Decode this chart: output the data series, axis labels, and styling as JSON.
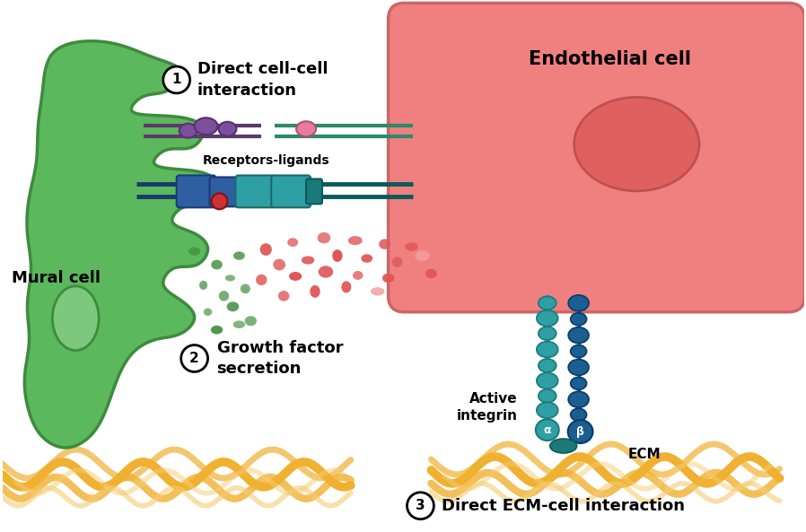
{
  "bg_color": "#ffffff",
  "mural_cell_color": "#5cb85c",
  "mural_cell_dark": "#3d8b3d",
  "mural_nucleus_color": "#7dc87d",
  "endothelial_bg": "#f08080",
  "endothelial_border": "#cc6666",
  "endothelial_nucleus": "#e06060",
  "receptor_blue": "#2E5FA3",
  "receptor_teal": "#2E9FA3",
  "receptor_dark_teal": "#1a7a7a",
  "ligand_purple": "#7B4F9E",
  "ligand_pink": "#E87BA0",
  "signal_red": "#cc3333",
  "dots_red": "#e05555",
  "dots_green": "#3a8a3a",
  "dots_pink_light": "#f0a0a0",
  "integrin_teal": "#2E9FA3",
  "integrin_dark": "#1a5f8f",
  "ecm_color": "#f0b030",
  "ecm_light": "#f5cc70",
  "title1": "Direct cell-cell\ninteraction",
  "title2": "Growth factor\nsecretion",
  "title3": "Direct ECM-cell interaction",
  "label_mural": "Mural cell",
  "label_endo": "Endothelial cell",
  "label_receptors": "Receptors-ligands",
  "label_integrin": "Active\nintegrin",
  "label_ecm": "ECM",
  "label_alpha": "α",
  "label_beta": "β",
  "membrane_dark_green": "#2d6a2d",
  "membrane_teal_dark": "#0a5a5a"
}
